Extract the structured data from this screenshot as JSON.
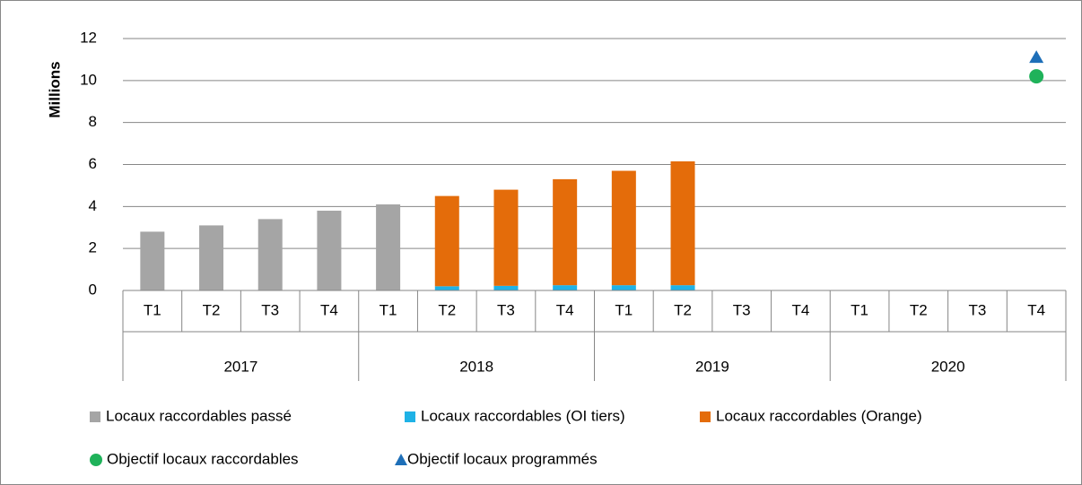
{
  "chart_data": {
    "type": "stacked_bar",
    "y_label": "Millions",
    "categories": [
      "T1",
      "T2",
      "T3",
      "T4",
      "T1",
      "T2",
      "T3",
      "T4",
      "T1",
      "T2",
      "T3",
      "T4",
      "T1",
      "T2",
      "T3",
      "T4"
    ],
    "groups": [
      "2017",
      "2018",
      "2019",
      "2020"
    ],
    "ylim": [
      0,
      12
    ],
    "yticks": [
      0,
      2,
      4,
      6,
      8,
      10,
      12
    ],
    "grid": true,
    "series": [
      {
        "name": "Locaux raccordables passé",
        "color": "#a5a5a5",
        "kind": "bar",
        "values": [
          2.8,
          3.1,
          3.4,
          3.8,
          4.1,
          null,
          null,
          null,
          null,
          null,
          null,
          null,
          null,
          null,
          null,
          null
        ]
      },
      {
        "name": "Locaux raccordables (OI tiers)",
        "color": "#1fb2e6",
        "kind": "bar",
        "values": [
          null,
          null,
          null,
          null,
          null,
          0.2,
          0.22,
          0.25,
          0.25,
          0.25,
          null,
          null,
          null,
          null,
          null,
          null
        ]
      },
      {
        "name": "Locaux raccordables (Orange)",
        "color": "#e46c0a",
        "kind": "bar",
        "values": [
          null,
          null,
          null,
          null,
          null,
          4.3,
          4.58,
          5.05,
          5.45,
          5.9,
          null,
          null,
          null,
          null,
          null,
          null
        ]
      },
      {
        "name": "Objectif locaux raccordables",
        "color": "#1fb25a",
        "kind": "point",
        "marker": "circle",
        "values": [
          null,
          null,
          null,
          null,
          null,
          null,
          null,
          null,
          null,
          null,
          null,
          null,
          null,
          null,
          null,
          10.2
        ]
      },
      {
        "name": "Objectif locaux programmés",
        "color": "#1e6fb8",
        "kind": "point",
        "marker": "triangle",
        "values": [
          null,
          null,
          null,
          null,
          null,
          null,
          null,
          null,
          null,
          null,
          null,
          null,
          null,
          null,
          null,
          11.1
        ]
      }
    ]
  }
}
